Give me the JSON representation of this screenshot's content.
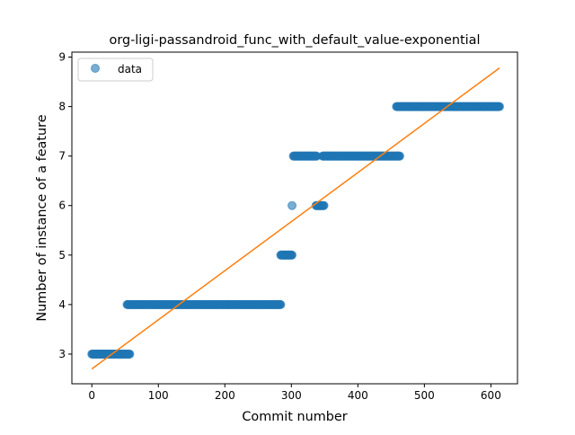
{
  "chart_data": {
    "type": "scatter",
    "title": "org-ligi-passandroid_func_with_default_value-exponential",
    "xlabel": "Commit number",
    "ylabel": "Number of instance of a feature",
    "xlim": [
      -30,
      640
    ],
    "ylim": [
      2.4,
      9.1
    ],
    "xticks": [
      0,
      100,
      200,
      300,
      400,
      500,
      600
    ],
    "yticks": [
      3,
      4,
      5,
      6,
      7,
      8,
      9
    ],
    "legend": {
      "position": "top-left",
      "entries": [
        "data"
      ]
    },
    "grid": false,
    "colors": {
      "data": "#1f77b4",
      "fit": "#ff7f0e"
    },
    "data_segments": [
      {
        "x_start": 0,
        "x_end": 57,
        "y": 3
      },
      {
        "x_start": 53,
        "x_end": 284,
        "y": 4
      },
      {
        "x_start": 284,
        "x_end": 301,
        "y": 5
      },
      {
        "x_start": 301,
        "x_end": 301,
        "y": 6
      },
      {
        "x_start": 303,
        "x_end": 338,
        "y": 7
      },
      {
        "x_start": 337,
        "x_end": 349,
        "y": 6
      },
      {
        "x_start": 347,
        "x_end": 463,
        "y": 7
      },
      {
        "x_start": 458,
        "x_end": 613,
        "y": 8
      }
    ],
    "fit_line": {
      "x": [
        0,
        613
      ],
      "y": [
        2.7,
        8.78
      ]
    }
  }
}
